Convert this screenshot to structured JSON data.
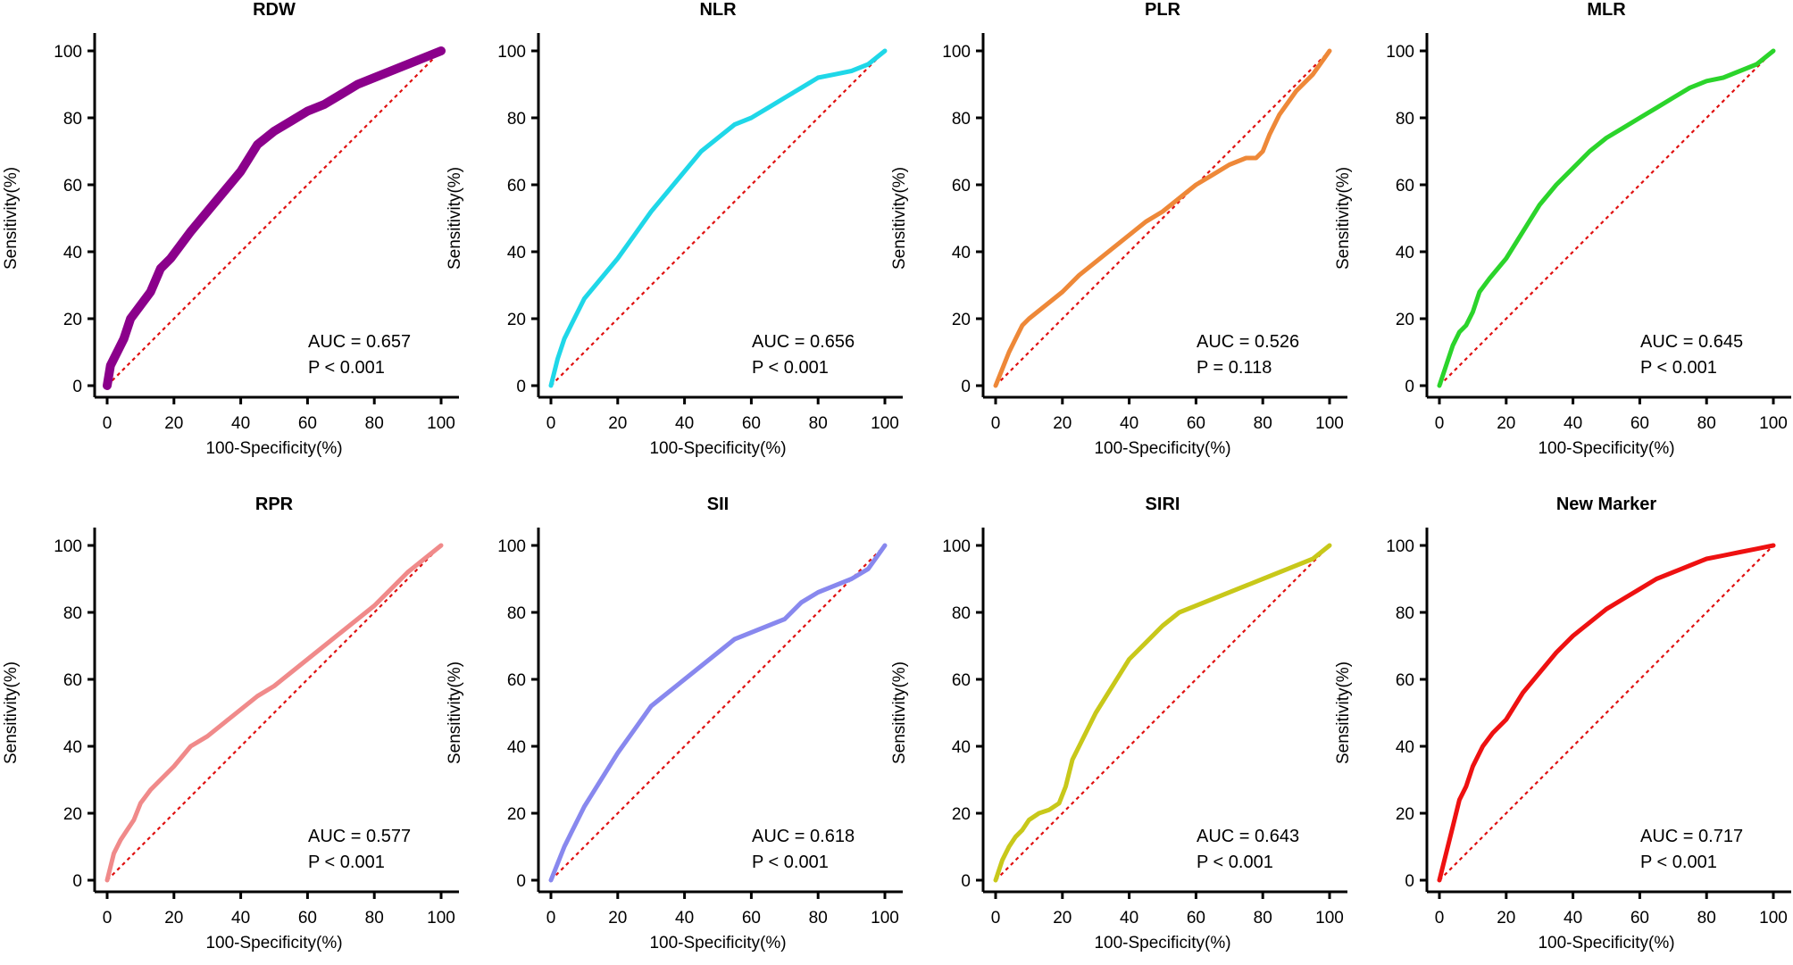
{
  "chart_data": [
    {
      "type": "line",
      "title": "RDW",
      "xlabel": "100-Specificity(%)",
      "ylabel": "Sensitivity(%)",
      "xlim": [
        0,
        100
      ],
      "ylim": [
        0,
        100
      ],
      "xticks": [
        "0",
        "20",
        "40",
        "60",
        "80",
        "100"
      ],
      "yticks": [
        "0",
        "20",
        "40",
        "60",
        "80",
        "100"
      ],
      "color": "#8B008B",
      "line_weight": "heavy",
      "auc_text": "AUC = 0.657",
      "p_text": "P < 0.001",
      "series": [
        {
          "name": "RDW",
          "x": [
            0,
            1,
            3,
            5,
            7,
            10,
            13,
            16,
            19,
            22,
            25,
            30,
            35,
            40,
            45,
            50,
            55,
            60,
            65,
            70,
            75,
            80,
            85,
            90,
            95,
            100
          ],
          "y": [
            0,
            6,
            10,
            14,
            20,
            24,
            28,
            35,
            38,
            42,
            46,
            52,
            58,
            64,
            72,
            76,
            79,
            82,
            84,
            87,
            90,
            92,
            94,
            96,
            98,
            100
          ]
        }
      ],
      "reference": {
        "name": "chance",
        "x": [
          0,
          100
        ],
        "y": [
          0,
          100
        ]
      }
    },
    {
      "type": "line",
      "title": "NLR",
      "xlabel": "100-Specificity(%)",
      "ylabel": "Sensitivity(%)",
      "xlim": [
        0,
        100
      ],
      "ylim": [
        0,
        100
      ],
      "xticks": [
        "0",
        "20",
        "40",
        "60",
        "80",
        "100"
      ],
      "yticks": [
        "0",
        "20",
        "40",
        "60",
        "80",
        "100"
      ],
      "color": "#1FD7E8",
      "line_weight": "medium",
      "auc_text": "AUC = 0.656",
      "p_text": "P < 0.001",
      "series": [
        {
          "name": "NLR",
          "x": [
            0,
            2,
            4,
            6,
            8,
            10,
            15,
            20,
            25,
            30,
            35,
            40,
            45,
            50,
            55,
            60,
            65,
            70,
            75,
            80,
            85,
            90,
            95,
            100
          ],
          "y": [
            0,
            8,
            14,
            18,
            22,
            26,
            32,
            38,
            45,
            52,
            58,
            64,
            70,
            74,
            78,
            80,
            83,
            86,
            89,
            92,
            93,
            94,
            96,
            100
          ]
        }
      ],
      "reference": {
        "name": "chance",
        "x": [
          0,
          100
        ],
        "y": [
          0,
          100
        ]
      }
    },
    {
      "type": "line",
      "title": "PLR",
      "xlabel": "100-Specificity(%)",
      "ylabel": "Sensitivity(%)",
      "xlim": [
        0,
        100
      ],
      "ylim": [
        0,
        100
      ],
      "xticks": [
        "0",
        "20",
        "40",
        "60",
        "80",
        "100"
      ],
      "yticks": [
        "0",
        "20",
        "40",
        "60",
        "80",
        "100"
      ],
      "color": "#EE8838",
      "line_weight": "medium",
      "auc_text": "AUC = 0.526",
      "p_text": "P = 0.118",
      "series": [
        {
          "name": "PLR",
          "x": [
            0,
            2,
            4,
            6,
            8,
            10,
            15,
            20,
            25,
            30,
            35,
            40,
            45,
            50,
            55,
            60,
            65,
            70,
            75,
            78,
            80,
            82,
            85,
            90,
            95,
            100
          ],
          "y": [
            0,
            5,
            10,
            14,
            18,
            20,
            24,
            28,
            33,
            37,
            41,
            45,
            49,
            52,
            56,
            60,
            63,
            66,
            68,
            68,
            70,
            75,
            81,
            88,
            93,
            100
          ]
        }
      ],
      "reference": {
        "name": "chance",
        "x": [
          0,
          100
        ],
        "y": [
          0,
          100
        ]
      }
    },
    {
      "type": "line",
      "title": "MLR",
      "xlabel": "100-Specificity(%)",
      "ylabel": "Sensitivity(%)",
      "xlim": [
        0,
        100
      ],
      "ylim": [
        0,
        100
      ],
      "xticks": [
        "0",
        "20",
        "40",
        "60",
        "80",
        "100"
      ],
      "yticks": [
        "0",
        "20",
        "40",
        "60",
        "80",
        "100"
      ],
      "color": "#2BD42B",
      "line_weight": "medium",
      "auc_text": "AUC = 0.645",
      "p_text": "P < 0.001",
      "series": [
        {
          "name": "MLR",
          "x": [
            0,
            2,
            4,
            6,
            8,
            10,
            12,
            15,
            20,
            25,
            30,
            35,
            40,
            45,
            50,
            55,
            60,
            65,
            70,
            75,
            80,
            85,
            90,
            95,
            100
          ],
          "y": [
            0,
            6,
            12,
            16,
            18,
            22,
            28,
            32,
            38,
            46,
            54,
            60,
            65,
            70,
            74,
            77,
            80,
            83,
            86,
            89,
            91,
            92,
            94,
            96,
            100
          ]
        }
      ],
      "reference": {
        "name": "chance",
        "x": [
          0,
          100
        ],
        "y": [
          0,
          100
        ]
      }
    },
    {
      "type": "line",
      "title": "RPR",
      "xlabel": "100-Specificity(%)",
      "ylabel": "Sensitivity(%)",
      "xlim": [
        0,
        100
      ],
      "ylim": [
        0,
        100
      ],
      "xticks": [
        "0",
        "20",
        "40",
        "60",
        "80",
        "100"
      ],
      "yticks": [
        "0",
        "20",
        "40",
        "60",
        "80",
        "100"
      ],
      "color": "#F08A8A",
      "line_weight": "medium",
      "auc_text": "AUC = 0.577",
      "p_text": "P < 0.001",
      "series": [
        {
          "name": "RPR",
          "x": [
            0,
            2,
            4,
            6,
            8,
            10,
            13,
            16,
            20,
            25,
            30,
            35,
            40,
            45,
            50,
            55,
            60,
            65,
            70,
            75,
            80,
            85,
            90,
            95,
            100
          ],
          "y": [
            0,
            8,
            12,
            15,
            18,
            23,
            27,
            30,
            34,
            40,
            43,
            47,
            51,
            55,
            58,
            62,
            66,
            70,
            74,
            78,
            82,
            87,
            92,
            96,
            100
          ]
        }
      ],
      "reference": {
        "name": "chance",
        "x": [
          0,
          100
        ],
        "y": [
          0,
          100
        ]
      }
    },
    {
      "type": "line",
      "title": "SII",
      "xlabel": "100-Specificity(%)",
      "ylabel": "Sensitivity(%)",
      "xlim": [
        0,
        100
      ],
      "ylim": [
        0,
        100
      ],
      "xticks": [
        "0",
        "20",
        "40",
        "60",
        "80",
        "100"
      ],
      "yticks": [
        "0",
        "20",
        "40",
        "60",
        "80",
        "100"
      ],
      "color": "#8888EE",
      "line_weight": "medium",
      "auc_text": "AUC = 0.618",
      "p_text": "P < 0.001",
      "series": [
        {
          "name": "SII",
          "x": [
            0,
            2,
            4,
            6,
            8,
            10,
            15,
            20,
            25,
            30,
            35,
            40,
            45,
            50,
            55,
            60,
            65,
            70,
            75,
            80,
            85,
            90,
            95,
            100
          ],
          "y": [
            0,
            5,
            10,
            14,
            18,
            22,
            30,
            38,
            45,
            52,
            56,
            60,
            64,
            68,
            72,
            74,
            76,
            78,
            83,
            86,
            88,
            90,
            93,
            100
          ]
        }
      ],
      "reference": {
        "name": "chance",
        "x": [
          0,
          100
        ],
        "y": [
          0,
          100
        ]
      }
    },
    {
      "type": "line",
      "title": "SIRI",
      "xlabel": "100-Specificity(%)",
      "ylabel": "Sensitivity(%)",
      "xlim": [
        0,
        100
      ],
      "ylim": [
        0,
        100
      ],
      "xticks": [
        "0",
        "20",
        "40",
        "60",
        "80",
        "100"
      ],
      "yticks": [
        "0",
        "20",
        "40",
        "60",
        "80",
        "100"
      ],
      "color": "#C8C81A",
      "line_weight": "medium",
      "auc_text": "AUC = 0.643",
      "p_text": "P < 0.001",
      "series": [
        {
          "name": "SIRI",
          "x": [
            0,
            2,
            4,
            6,
            8,
            10,
            13,
            16,
            19,
            21,
            23,
            25,
            28,
            30,
            35,
            40,
            45,
            50,
            55,
            60,
            65,
            70,
            75,
            80,
            85,
            90,
            95,
            100
          ],
          "y": [
            0,
            6,
            10,
            13,
            15,
            18,
            20,
            21,
            23,
            28,
            36,
            40,
            46,
            50,
            58,
            66,
            71,
            76,
            80,
            82,
            84,
            86,
            88,
            90,
            92,
            94,
            96,
            100
          ]
        }
      ],
      "reference": {
        "name": "chance",
        "x": [
          0,
          100
        ],
        "y": [
          0,
          100
        ]
      }
    },
    {
      "type": "line",
      "title": "New Marker",
      "xlabel": "100-Specificity(%)",
      "ylabel": "Sensitivity(%)",
      "xlim": [
        0,
        100
      ],
      "ylim": [
        0,
        100
      ],
      "xticks": [
        "0",
        "20",
        "40",
        "60",
        "80",
        "100"
      ],
      "yticks": [
        "0",
        "20",
        "40",
        "60",
        "80",
        "100"
      ],
      "color": "#EE1111",
      "line_weight": "medium",
      "auc_text": "AUC = 0.717",
      "p_text": "P < 0.001",
      "series": [
        {
          "name": "New Marker",
          "x": [
            0,
            2,
            4,
            6,
            8,
            10,
            13,
            16,
            20,
            25,
            30,
            35,
            40,
            45,
            50,
            55,
            60,
            65,
            70,
            75,
            80,
            85,
            90,
            95,
            100
          ],
          "y": [
            0,
            8,
            16,
            24,
            28,
            34,
            40,
            44,
            48,
            56,
            62,
            68,
            73,
            77,
            81,
            84,
            87,
            90,
            92,
            94,
            96,
            97,
            98,
            99,
            100
          ]
        }
      ],
      "reference": {
        "name": "chance",
        "x": [
          0,
          100
        ],
        "y": [
          0,
          100
        ]
      }
    }
  ]
}
